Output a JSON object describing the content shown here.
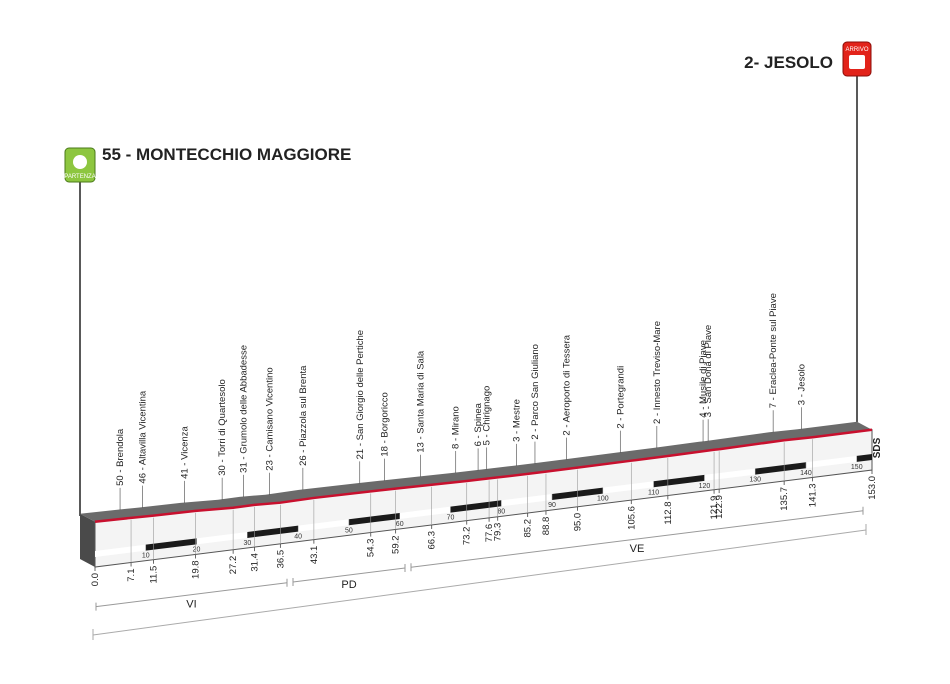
{
  "chart_data": {
    "type": "profile",
    "start": {
      "altitude": 55,
      "name": "MONTECCHIO MAGGIORE",
      "km": {
        "value": 0,
        "label": "0.0"
      },
      "icon": "PARTENZA"
    },
    "finish": {
      "altitude": 2,
      "name": "JESOLO",
      "km": {
        "value": 153,
        "label": "153.0"
      },
      "icon": "ARRIVO"
    },
    "waypoints": [
      {
        "altitude": 50,
        "name": "Brendola",
        "km": 7.1
      },
      {
        "altitude": 46,
        "name": "Altavilla Vicentina",
        "km": 11.5
      },
      {
        "altitude": 41,
        "name": "Vicenza",
        "km": 19.8
      },
      {
        "altitude": 30,
        "name": "Torri di Quartesolo",
        "km": 27.2
      },
      {
        "altitude": 31,
        "name": "Grumolo delle Abbadesse",
        "km": 31.4
      },
      {
        "altitude": 23,
        "name": "Camisano Vicentino",
        "km": 36.5
      },
      {
        "altitude": 26,
        "name": "Piazzola sul Brenta",
        "km": 43.1
      },
      {
        "altitude": 21,
        "name": "San Giorgio delle Pertiche",
        "km": 54.3
      },
      {
        "altitude": 18,
        "name": "Borgoricco",
        "km": 59.2
      },
      {
        "altitude": 13,
        "name": "Santa Maria di Sala",
        "km": 66.3
      },
      {
        "altitude": 8,
        "name": "Mirano",
        "km": 73.2
      },
      {
        "altitude": 6,
        "name": "Spinea",
        "km": 77.6
      },
      {
        "altitude": 5,
        "name": "Chirignago",
        "km": 79.3
      },
      {
        "altitude": 3,
        "name": "Mestre",
        "km": 85.2
      },
      {
        "altitude": 2,
        "name": "Parco San Giuliano",
        "km": 88.8
      },
      {
        "altitude": 2,
        "name": "Aeroporto di Tessera",
        "km": {
          "value": 95,
          "label": "95.0"
        }
      },
      {
        "altitude": 2,
        "name": "Portegrandi",
        "km": 105.6
      },
      {
        "altitude": 2,
        "name": "Innesto Treviso-Mare",
        "km": 112.8
      },
      {
        "altitude": 4,
        "name": "Musile di Piave",
        "km": 121.9
      },
      {
        "altitude": 3,
        "name": "San Donà di Piave",
        "km": 122.9
      },
      {
        "altitude": 7,
        "name": "Eraclea-Ponte sul Piave",
        "km": 135.7
      },
      {
        "altitude": 3,
        "name": "Jesolo",
        "km": 141.3
      }
    ],
    "xlim": [
      0,
      153
    ],
    "xticks": [
      10,
      20,
      30,
      40,
      50,
      60,
      70,
      80,
      90,
      100,
      110,
      120,
      130,
      140,
      150
    ],
    "provinces": [
      "VI",
      "PD",
      "VE"
    ],
    "source": "SDS"
  }
}
